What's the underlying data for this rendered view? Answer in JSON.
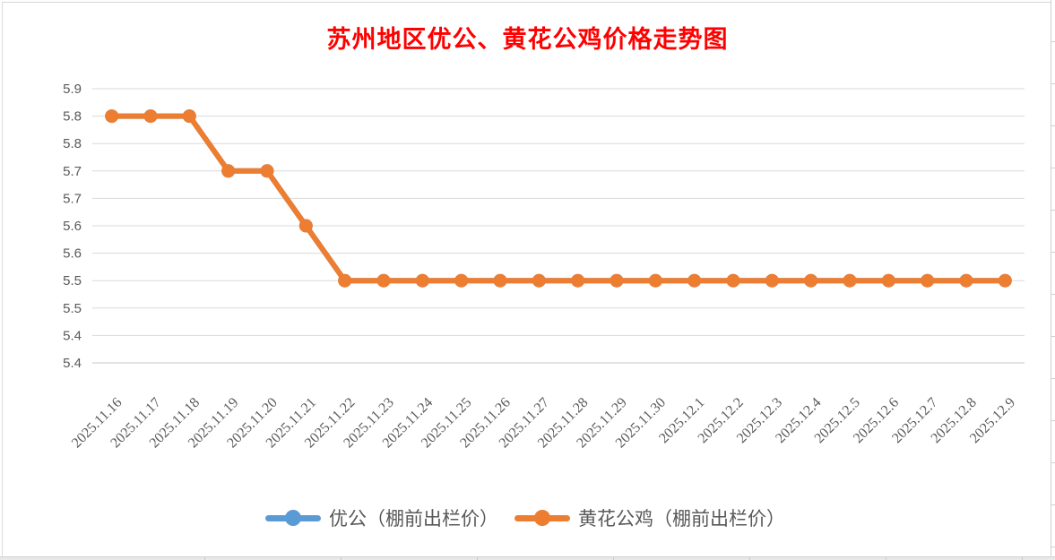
{
  "title": {
    "text": "苏州地区优公、黄花公鸡价格走势图",
    "color": "#FF0000"
  },
  "chart_data": {
    "type": "line",
    "title": "苏州地区优公、黄花公鸡价格走势图",
    "categories": [
      "2025.11.16",
      "2025.11.17",
      "2025.11.18",
      "2025.11.19",
      "2025.11.20",
      "2025.11.21",
      "2025.11.22",
      "2025.11.23",
      "2025.11.24",
      "2025.11.25",
      "2025.11.26",
      "2025.11.27",
      "2025.11.28",
      "2025.11.29",
      "2025.11.30",
      "2025.12.1",
      "2025.12.2",
      "2025.12.3",
      "2025.12.4",
      "2025.12.5",
      "2025.12.6",
      "2025.12.7",
      "2025.12.8",
      "2025.12.9"
    ],
    "series": [
      {
        "name": "优公（棚前出栏价）",
        "color": "#5B9BD5",
        "marker": "circle",
        "values": [
          5.8,
          5.8,
          5.8,
          5.7,
          5.7,
          5.6,
          5.5,
          5.5,
          5.5,
          5.5,
          5.5,
          5.5,
          5.5,
          5.5,
          5.5,
          5.5,
          5.5,
          5.5,
          5.5,
          5.5,
          5.5,
          5.5,
          5.5,
          5.5
        ]
      },
      {
        "name": "黄花公鸡（棚前出栏价）",
        "color": "#ED7D31",
        "marker": "circle",
        "values": [
          5.8,
          5.8,
          5.8,
          5.7,
          5.7,
          5.6,
          5.5,
          5.5,
          5.5,
          5.5,
          5.5,
          5.5,
          5.5,
          5.5,
          5.5,
          5.5,
          5.5,
          5.5,
          5.5,
          5.5,
          5.5,
          5.5,
          5.5,
          5.5
        ]
      }
    ],
    "y_axis": {
      "tick_labels": [
        "5.9",
        "5.8",
        "5.8",
        "5.7",
        "5.7",
        "5.6",
        "5.6",
        "5.5",
        "5.5",
        "5.4",
        "5.4"
      ],
      "ylim": [
        5.35,
        5.85
      ],
      "tick_step": 0.05,
      "grid": true,
      "gridline_color": "#d9d9d9",
      "label_color": "#595959"
    },
    "x_axis": {
      "label_rotation_deg": -45,
      "label_color": "#595959"
    },
    "legend_position": "bottom"
  }
}
